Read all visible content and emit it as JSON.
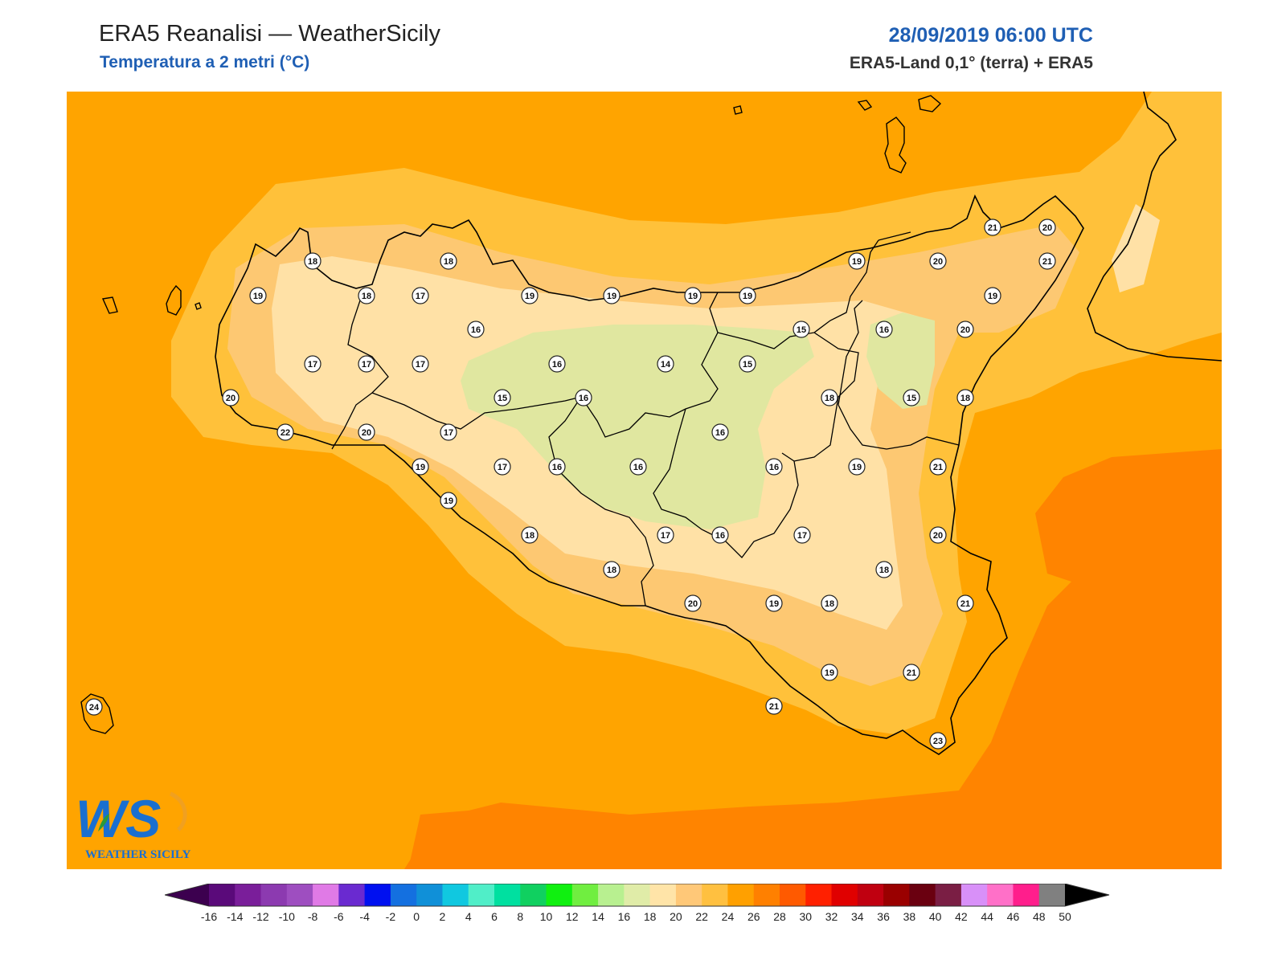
{
  "header": {
    "title": "ERA5 Reanalisi — WeatherSicily",
    "subtitle": "Temperatura a 2 metri (°C)",
    "datetime": "28/09/2019 06:00 UTC",
    "source": "ERA5-Land 0,1° (terra) + ERA5"
  },
  "logo": {
    "letters": "WS",
    "text": "WEATHER SICILY",
    "icon": "weather-sicily-logo"
  },
  "map": {
    "sea_base_color": "#ffa400",
    "stations": [
      {
        "value": "18"
      },
      {
        "value": "18"
      },
      {
        "value": "19"
      },
      {
        "value": "18"
      },
      {
        "value": "17"
      },
      {
        "value": "19"
      },
      {
        "value": "19"
      },
      {
        "value": "19"
      },
      {
        "value": "19"
      },
      {
        "value": "19"
      },
      {
        "value": "20"
      },
      {
        "value": "21"
      },
      {
        "value": "20"
      },
      {
        "value": "21"
      },
      {
        "value": "19"
      },
      {
        "value": "16"
      },
      {
        "value": "15"
      },
      {
        "value": "16"
      },
      {
        "value": "20"
      },
      {
        "value": "17"
      },
      {
        "value": "17"
      },
      {
        "value": "17"
      },
      {
        "value": "16"
      },
      {
        "value": "14"
      },
      {
        "value": "15"
      },
      {
        "value": "20"
      },
      {
        "value": "15"
      },
      {
        "value": "16"
      },
      {
        "value": "18"
      },
      {
        "value": "15"
      },
      {
        "value": "18"
      },
      {
        "value": "22"
      },
      {
        "value": "20"
      },
      {
        "value": "17"
      },
      {
        "value": "16"
      },
      {
        "value": "19"
      },
      {
        "value": "17"
      },
      {
        "value": "16"
      },
      {
        "value": "16"
      },
      {
        "value": "16"
      },
      {
        "value": "19"
      },
      {
        "value": "21"
      },
      {
        "value": "19"
      },
      {
        "value": "18"
      },
      {
        "value": "17"
      },
      {
        "value": "16"
      },
      {
        "value": "17"
      },
      {
        "value": "20"
      },
      {
        "value": "18"
      },
      {
        "value": "18"
      },
      {
        "value": "20"
      },
      {
        "value": "19"
      },
      {
        "value": "18"
      },
      {
        "value": "21"
      },
      {
        "value": "19"
      },
      {
        "value": "21"
      },
      {
        "value": "21"
      },
      {
        "value": "23"
      },
      {
        "value": "24"
      }
    ]
  },
  "legend": {
    "colors": [
      "#3c004f",
      "#5a0a7a",
      "#7a1e9a",
      "#8c3ab0",
      "#9e4ec0",
      "#e07ae6",
      "#6a2ad0",
      "#0010f0",
      "#1470e0",
      "#1090d8",
      "#10c8e0",
      "#50eec8",
      "#00e0a0",
      "#10d060",
      "#10f010",
      "#70ee40",
      "#b8f090",
      "#e0eca8",
      "#ffe4a8",
      "#ffc878",
      "#ffc040",
      "#ffa000",
      "#ff8000",
      "#ff5a00",
      "#ff2000",
      "#e00000",
      "#c00010",
      "#9a0000",
      "#6a0010",
      "#7a1e44",
      "#d890f8",
      "#ff70c8",
      "#ff1e8c",
      "#808080",
      "#404040"
    ],
    "labels": [
      "-16",
      "-14",
      "-12",
      "-10",
      "-8",
      "-6",
      "-4",
      "-2",
      "0",
      "2",
      "4",
      "6",
      "8",
      "10",
      "12",
      "14",
      "16",
      "18",
      "20",
      "22",
      "24",
      "26",
      "28",
      "30",
      "32",
      "34",
      "36",
      "38",
      "40",
      "42",
      "44",
      "46",
      "48",
      "50"
    ]
  }
}
